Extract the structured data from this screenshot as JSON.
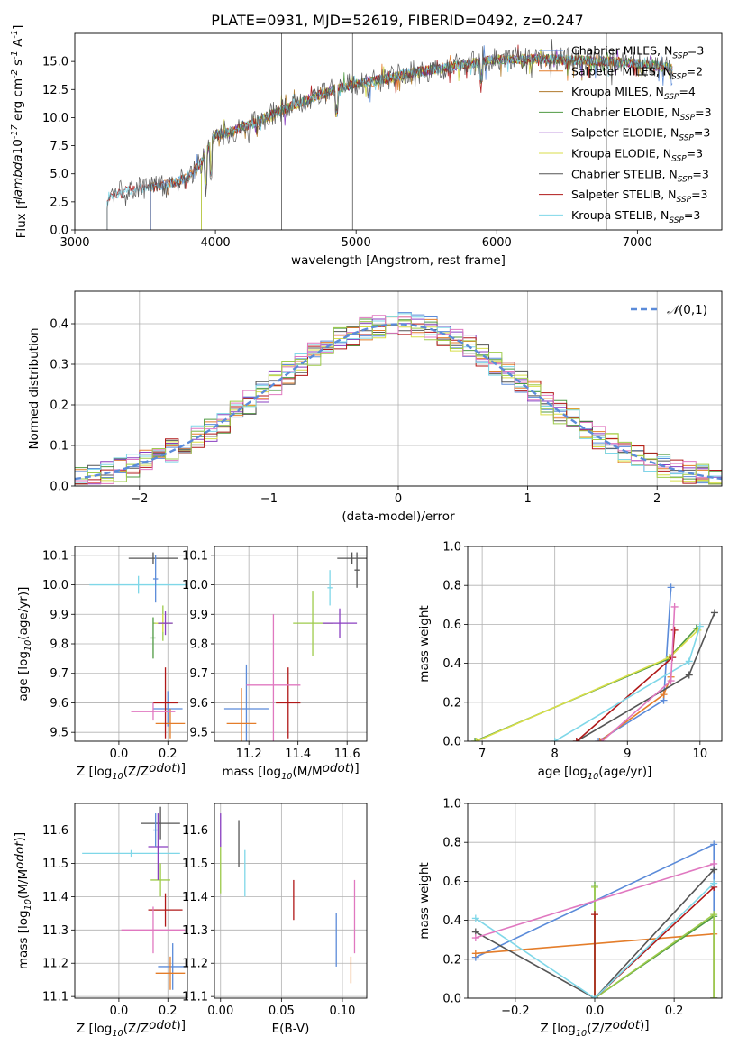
{
  "colors": [
    "#5b8bd9",
    "#e47d2a",
    "#b07a2b",
    "#4f9a42",
    "#8a3fc1",
    "#d8de49",
    "#555555",
    "#b01818",
    "#7fd7e8",
    "#e078c0",
    "#9ecb4b"
  ],
  "chart_data": [
    {
      "type": "line",
      "title": "PLATE=0931, MJD=52619, FIBERID=0492, z=0.247",
      "xlabel": "wavelength [Angstrom, rest frame]",
      "ylabel": "Flux [f$_\\lambda$10$^{-17}$ erg cm$^{-2}$ s$^{-1}$ A$^{-1}$]",
      "xlim": [
        3000,
        7600
      ],
      "ylim": [
        0,
        17.5
      ],
      "xticks": [
        3000,
        4000,
        5000,
        6000,
        7000
      ],
      "yticks": [
        0.0,
        2.5,
        5.0,
        7.5,
        10.0,
        12.5,
        15.0
      ],
      "grid": false,
      "legend_placement": "top-right",
      "spectrum_x": [
        3230,
        3400,
        3600,
        3800,
        3900,
        4000,
        4100,
        4200,
        4300,
        4400,
        4600,
        4800,
        5000,
        5200,
        5400,
        5600,
        5800,
        6000,
        6200,
        6400,
        6600,
        6800,
        7000,
        7200,
        7250
      ],
      "spectrum_y": [
        3.0,
        3.6,
        3.9,
        4.6,
        6.0,
        8.5,
        8.7,
        9.2,
        9.6,
        10.3,
        11.3,
        12.3,
        13.0,
        13.4,
        14.0,
        14.4,
        14.8,
        15.2,
        15.2,
        15.2,
        15.1,
        15.0,
        14.8,
        14.5,
        14.3
      ],
      "series": [
        {
          "name": "Chabrier MILES, N$_{SSP}$=3",
          "start": 3540
        },
        {
          "name": "Salpeter MILES, N$_{SSP}$=2",
          "start": 3540
        },
        {
          "name": "Kroupa MILES, N$_{SSP}$=4",
          "start": 3540
        },
        {
          "name": "Chabrier ELODIE, N$_{SSP}$=3",
          "start": 3900
        },
        {
          "name": "Salpeter ELODIE, N$_{SSP}$=3",
          "start": 3900
        },
        {
          "name": "Kroupa ELODIE, N$_{SSP}$=3",
          "start": 3900
        },
        {
          "name": "Chabrier STELIB, N$_{SSP}$=3",
          "start": 3230
        },
        {
          "name": "Salpeter STELIB, N$_{SSP}$=3",
          "start": 3230
        },
        {
          "name": "Kroupa STELIB, N$_{SSP}$=3",
          "start": 3230
        }
      ]
    },
    {
      "type": "histogram",
      "xlabel": "(data-model)/error",
      "ylabel": "Normed distribution",
      "xlim": [
        -2.5,
        2.5
      ],
      "ylim": [
        0,
        0.48
      ],
      "xticks": [
        -2,
        -1,
        0,
        1,
        2
      ],
      "yticks": [
        0.0,
        0.1,
        0.2,
        0.3,
        0.4
      ],
      "grid": true,
      "legend": [
        {
          "name": "$\\mathcal{N}(0,1)$"
        }
      ],
      "legend_placement": "top-right",
      "bin_width": 0.1
    },
    {
      "type": "errorbar",
      "xlabel": "Z [log$_{10}$(Z/Z$_\\odot$)]",
      "ylabel": "age  [log$_{10}$(age/yr)]",
      "xlim": [
        -0.18,
        0.28
      ],
      "ylim": [
        9.47,
        10.13
      ],
      "xticks": [
        0.0,
        0.2
      ],
      "yticks": [
        9.5,
        9.6,
        9.7,
        9.8,
        9.9,
        10.0,
        10.1
      ],
      "points": [
        {
          "x": 0.2,
          "xerr": 0.06,
          "y": 9.58,
          "yerr": 0.06,
          "c": 0
        },
        {
          "x": 0.21,
          "xerr": 0.06,
          "y": 9.53,
          "yerr": 0.05,
          "c": 1
        },
        {
          "x": 0.14,
          "xerr": 0.1,
          "y": 10.09,
          "yerr": 0.02,
          "c": 6
        },
        {
          "x": 0.19,
          "xerr": 0.05,
          "y": 9.6,
          "yerr": 0.12,
          "c": 7
        },
        {
          "x": 0.08,
          "xerr": 0.2,
          "y": 10.0,
          "yerr": 0.03,
          "c": 8
        },
        {
          "x": 0.14,
          "xerr": 0.09,
          "y": 9.57,
          "yerr": 0.03,
          "c": 9
        },
        {
          "x": 0.18,
          "xerr": 0.04,
          "y": 9.87,
          "yerr": 0.06,
          "c": 10
        },
        {
          "x": 0.18,
          "xerr": 0.03,
          "y": 9.87,
          "yerr": 0.03,
          "c": 5
        },
        {
          "x": 0.19,
          "xerr": 0.03,
          "y": 9.87,
          "yerr": 0.04,
          "c": 4
        },
        {
          "x": 0.15,
          "xerr": 0.01,
          "y": 10.02,
          "yerr": 0.08,
          "c": 0
        },
        {
          "x": 0.14,
          "xerr": 0.01,
          "y": 9.82,
          "yerr": 0.07,
          "c": 3
        }
      ]
    },
    {
      "type": "errorbar",
      "xlabel": "mass [log$_{10}$(M/M$_\\odot$)]",
      "xlim": [
        11.06,
        11.68
      ],
      "ylim": [
        9.47,
        10.13
      ],
      "xticks": [
        11.2,
        11.4,
        11.6
      ],
      "yticks": [
        9.5,
        9.6,
        9.7,
        9.8,
        9.9,
        10.0,
        10.1
      ],
      "points": [
        {
          "x": 11.19,
          "xerr": 0.09,
          "y": 9.58,
          "yerr": 0.15,
          "c": 0
        },
        {
          "x": 11.17,
          "xerr": 0.06,
          "y": 9.53,
          "yerr": 0.12,
          "c": 1
        },
        {
          "x": 11.62,
          "xerr": 0.06,
          "y": 10.09,
          "yerr": 0.02,
          "c": 6
        },
        {
          "x": 11.36,
          "xerr": 0.05,
          "y": 9.6,
          "yerr": 0.12,
          "c": 7
        },
        {
          "x": 11.53,
          "xerr": 0.01,
          "y": 9.99,
          "yerr": 0.06,
          "c": 8
        },
        {
          "x": 11.3,
          "xerr": 0.11,
          "y": 9.66,
          "yerr": 0.24,
          "c": 9
        },
        {
          "x": 11.46,
          "xerr": 0.08,
          "y": 9.87,
          "yerr": 0.11,
          "c": 10
        },
        {
          "x": 11.57,
          "xerr": 0.07,
          "y": 9.87,
          "yerr": 0.05,
          "c": 4
        },
        {
          "x": 11.64,
          "xerr": 0.01,
          "y": 10.05,
          "yerr": 0.06,
          "c": 6
        }
      ]
    },
    {
      "type": "line",
      "xlabel": "age  [log$_{10}$(age/yr)]",
      "ylabel": "mass weight",
      "xlim": [
        6.8,
        10.3
      ],
      "ylim": [
        0,
        1
      ],
      "xticks": [
        7,
        8,
        9,
        10
      ],
      "yticks": [
        0.0,
        0.2,
        0.4,
        0.6,
        0.8,
        1.0
      ],
      "grid": true,
      "series": [
        {
          "c": 0,
          "x": [
            8.6,
            9.5,
            9.6
          ],
          "y": [
            0.0,
            0.21,
            0.79
          ]
        },
        {
          "c": 1,
          "x": [
            8.62,
            9.5,
            9.6
          ],
          "y": [
            0.0,
            0.24,
            0.33
          ]
        },
        {
          "c": 3,
          "x": [
            6.9,
            9.55,
            9.95
          ],
          "y": [
            0.0,
            0.42,
            0.58
          ]
        },
        {
          "c": 5,
          "x": [
            6.92,
            9.58,
            9.97
          ],
          "y": [
            0.0,
            0.43,
            0.57
          ]
        },
        {
          "c": 6,
          "x": [
            8.3,
            9.85,
            10.2
          ],
          "y": [
            0.0,
            0.34,
            0.66
          ]
        },
        {
          "c": 7,
          "x": [
            8.3,
            9.62,
            9.65
          ],
          "y": [
            0.0,
            0.43,
            0.57
          ]
        },
        {
          "c": 8,
          "x": [
            8.0,
            9.85,
            10.0
          ],
          "y": [
            0.0,
            0.41,
            0.59
          ]
        },
        {
          "c": 9,
          "x": [
            8.65,
            9.6,
            9.65
          ],
          "y": [
            0.0,
            0.31,
            0.69
          ]
        }
      ]
    },
    {
      "type": "errorbar",
      "xlabel": "Z [log$_{10}$(Z/Z$_\\odot$)]",
      "ylabel": "mass [log$_{10}$(M/M$_\\odot$)]",
      "xlim": [
        -0.18,
        0.28
      ],
      "ylim": [
        11.095,
        11.68
      ],
      "xticks": [
        0.0,
        0.2
      ],
      "yticks": [
        11.1,
        11.2,
        11.3,
        11.4,
        11.5,
        11.6
      ],
      "points": [
        {
          "x": 0.22,
          "xerr": 0.06,
          "y": 11.19,
          "yerr": 0.07,
          "c": 0
        },
        {
          "x": 0.21,
          "xerr": 0.06,
          "y": 11.17,
          "yerr": 0.05,
          "c": 1
        },
        {
          "x": 0.17,
          "xerr": 0.08,
          "y": 11.62,
          "yerr": 0.05,
          "c": 6
        },
        {
          "x": 0.19,
          "xerr": 0.07,
          "y": 11.36,
          "yerr": 0.05,
          "c": 7
        },
        {
          "x": 0.05,
          "xerr": 0.2,
          "y": 11.53,
          "yerr": 0.01,
          "c": 8
        },
        {
          "x": 0.14,
          "xerr": 0.13,
          "y": 11.3,
          "yerr": 0.07,
          "c": 9
        },
        {
          "x": 0.17,
          "xerr": 0.04,
          "y": 11.45,
          "yerr": 0.05,
          "c": 10
        },
        {
          "x": 0.16,
          "xerr": 0.04,
          "y": 11.55,
          "yerr": 0.1,
          "c": 4
        },
        {
          "x": 0.15,
          "xerr": 0.01,
          "y": 11.6,
          "yerr": 0.05,
          "c": 0
        }
      ]
    },
    {
      "type": "errorbar",
      "xlabel": "E(B-V)",
      "xlim": [
        -0.005,
        0.12
      ],
      "ylim": [
        11.095,
        11.68
      ],
      "xticks": [
        0.0,
        0.05,
        0.1
      ],
      "yticks": [
        11.1,
        11.2,
        11.3,
        11.4,
        11.5,
        11.6
      ],
      "points": [
        {
          "x": 0.095,
          "y": 11.27,
          "yerr": 0.08,
          "c": 0
        },
        {
          "x": 0.107,
          "y": 11.18,
          "yerr": 0.04,
          "c": 1
        },
        {
          "x": 0.015,
          "y": 11.56,
          "yerr": 0.07,
          "c": 6
        },
        {
          "x": 0.06,
          "y": 11.39,
          "yerr": 0.06,
          "c": 7
        },
        {
          "x": 0.02,
          "y": 11.47,
          "yerr": 0.07,
          "c": 8
        },
        {
          "x": 0.11,
          "y": 11.34,
          "yerr": 0.11,
          "c": 9
        },
        {
          "x": 0.0,
          "y": 11.48,
          "yerr": 0.07,
          "c": 10
        },
        {
          "x": 0.0,
          "y": 11.6,
          "yerr": 0.05,
          "c": 4
        }
      ]
    },
    {
      "type": "line",
      "xlabel": "Z [log$_{10}$(Z/Z$_\\odot$)]",
      "ylabel": "mass weight",
      "xlim": [
        -0.32,
        0.32
      ],
      "ylim": [
        0,
        1
      ],
      "xticks": [
        -0.2,
        0.0,
        0.2
      ],
      "yticks": [
        0.0,
        0.2,
        0.4,
        0.6,
        0.8,
        1.0
      ],
      "grid": true,
      "series": [
        {
          "c": 0,
          "x": [
            -0.3,
            0.3,
            0.3
          ],
          "y": [
            0.21,
            0.79,
            0.0
          ]
        },
        {
          "c": 1,
          "x": [
            -0.3,
            0.3,
            0.3
          ],
          "y": [
            0.23,
            0.33,
            0.0
          ]
        },
        {
          "c": 3,
          "x": [
            0.0,
            0.0,
            0.3,
            0.3
          ],
          "y": [
            0.58,
            0.0,
            0.42,
            0.0
          ]
        },
        {
          "c": 10,
          "x": [
            0.0,
            0.0,
            0.3,
            0.3
          ],
          "y": [
            0.57,
            0.0,
            0.43,
            0.0
          ]
        },
        {
          "c": 6,
          "x": [
            -0.3,
            0.0,
            0.3
          ],
          "y": [
            0.34,
            0.0,
            0.66
          ]
        },
        {
          "c": 7,
          "x": [
            0.0,
            0.0,
            0.3
          ],
          "y": [
            0.43,
            0.0,
            0.57
          ]
        },
        {
          "c": 8,
          "x": [
            -0.3,
            0.0,
            0.3
          ],
          "y": [
            0.41,
            0.0,
            0.59
          ]
        },
        {
          "c": 9,
          "x": [
            -0.3,
            0.3
          ],
          "y": [
            0.31,
            0.69
          ]
        }
      ]
    }
  ]
}
